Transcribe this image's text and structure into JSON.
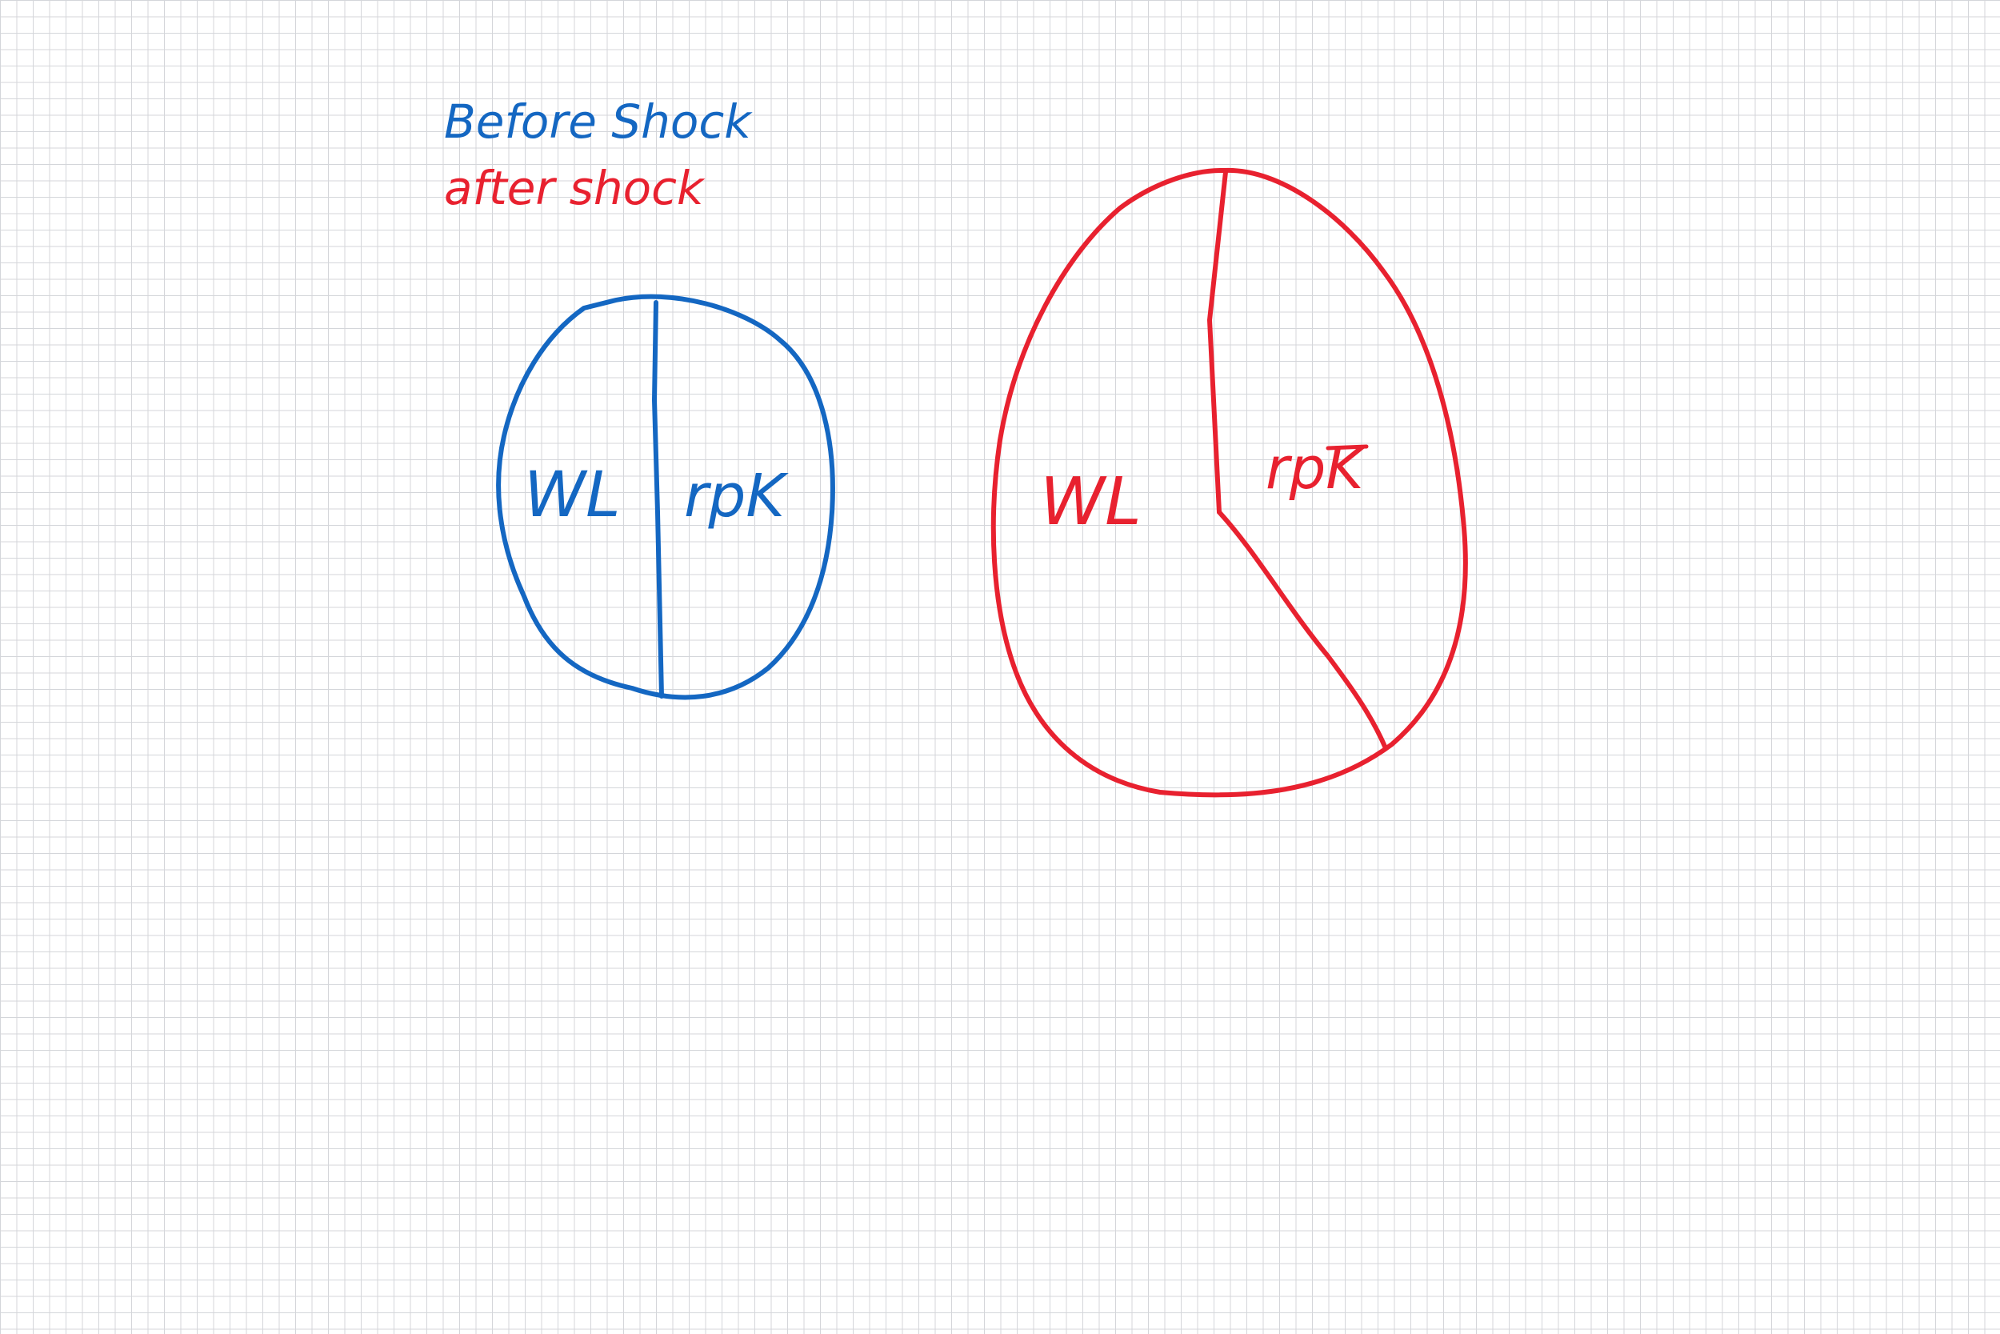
{
  "legend": {
    "before": {
      "label": "Before Shock",
      "color": "#1467c2"
    },
    "after": {
      "label": "after shock",
      "color": "#e8212f"
    }
  },
  "before_pie": {
    "left_label": "WL",
    "right_label": "rpK",
    "color": "#1467c2",
    "shares": {
      "WL": 0.5,
      "rpK": 0.5
    }
  },
  "after_pie": {
    "left_label": "WL",
    "right_label": "rpK",
    "color": "#e8212f",
    "shares": {
      "WL": 0.6,
      "rpK": 0.4
    },
    "right_label_overbar": true
  }
}
